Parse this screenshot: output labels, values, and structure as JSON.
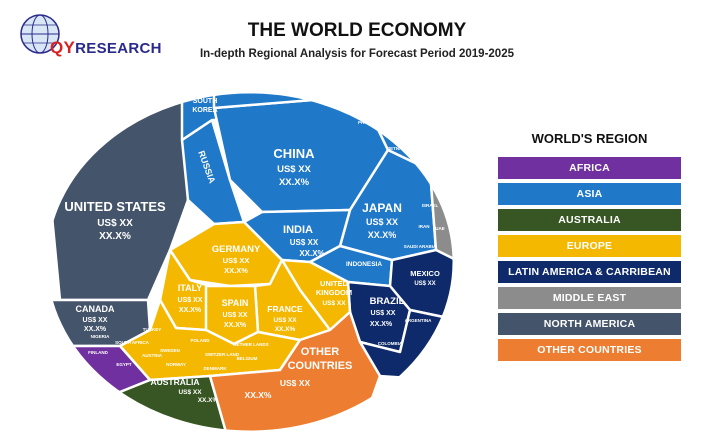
{
  "logo": {
    "prefix": "QY",
    "suffix": "RESEARCH"
  },
  "header": {
    "title": "THE WORLD ECONOMY",
    "subtitle": "In-depth Regional Analysis for Forecast Period 2019-2025"
  },
  "legend": {
    "title": "WORLD'S REGION",
    "items": [
      {
        "label": "AFRICA",
        "color": "#7030a0"
      },
      {
        "label": "ASIA",
        "color": "#1f78c8"
      },
      {
        "label": "AUSTRALIA",
        "color": "#375623"
      },
      {
        "label": "EUROPE",
        "color": "#f5b800"
      },
      {
        "label": "LATIN AMERICA & CARRIBEAN",
        "color": "#0f2a6b"
      },
      {
        "label": "MIDDLE EAST",
        "color": "#8c8c8c"
      },
      {
        "label": "NORTH AMERICA",
        "color": "#44546a"
      },
      {
        "label": "OTHER COUNTRIES",
        "color": "#ed7d31"
      }
    ]
  },
  "placeholders": {
    "value": "US$ XX",
    "share": "XX.X%"
  },
  "cells": {
    "usa": "UNITED STATES",
    "canada": "CANADA",
    "china": "CHINA",
    "japan": "JAPAN",
    "india": "INDIA",
    "russia": "RUSSIA",
    "south_korea_1": "SOUTH",
    "south_korea_2": "KOREA",
    "indonesia": "INDONESIA",
    "thailand": "THAILAND",
    "hong_kong": "HONG KONG",
    "singapore": "SINGAPORE",
    "malaysia": "MALAYSIA",
    "philippines": "PHILIPPINES",
    "vietnam": "VIETNAM",
    "germany": "GERMANY",
    "uk_1": "UNITED",
    "uk_2": "KINGDOM",
    "france": "FRANCE",
    "italy": "ITALY",
    "spain": "SPAIN",
    "netherlands": "NETHER LANDS",
    "belgium": "BELGIUM",
    "switzerland": "SWITZER LAND",
    "poland": "POLAND",
    "sweden": "SWEDEN",
    "austria": "AUSTRIA",
    "norway": "NORWAY",
    "denmark": "DENMARK",
    "turkey": "TURKEY",
    "other_1": "OTHER",
    "other_2": "COUNTRIES",
    "brazil": "BRAZIL",
    "mexico": "MEXICO",
    "colombia": "COLOMBIA",
    "argentina": "ARGENTINA",
    "australia": "AUSTRALIA",
    "south_africa": "SOUTH AFRICA",
    "nigeria": "NIGERIA",
    "egypt": "EGYPT",
    "finland": "FINLAND",
    "israel": "ISRAEL",
    "uae": "UAE",
    "iran": "IRAN",
    "saudi_arabia": "SAUDI ARABIA"
  }
}
